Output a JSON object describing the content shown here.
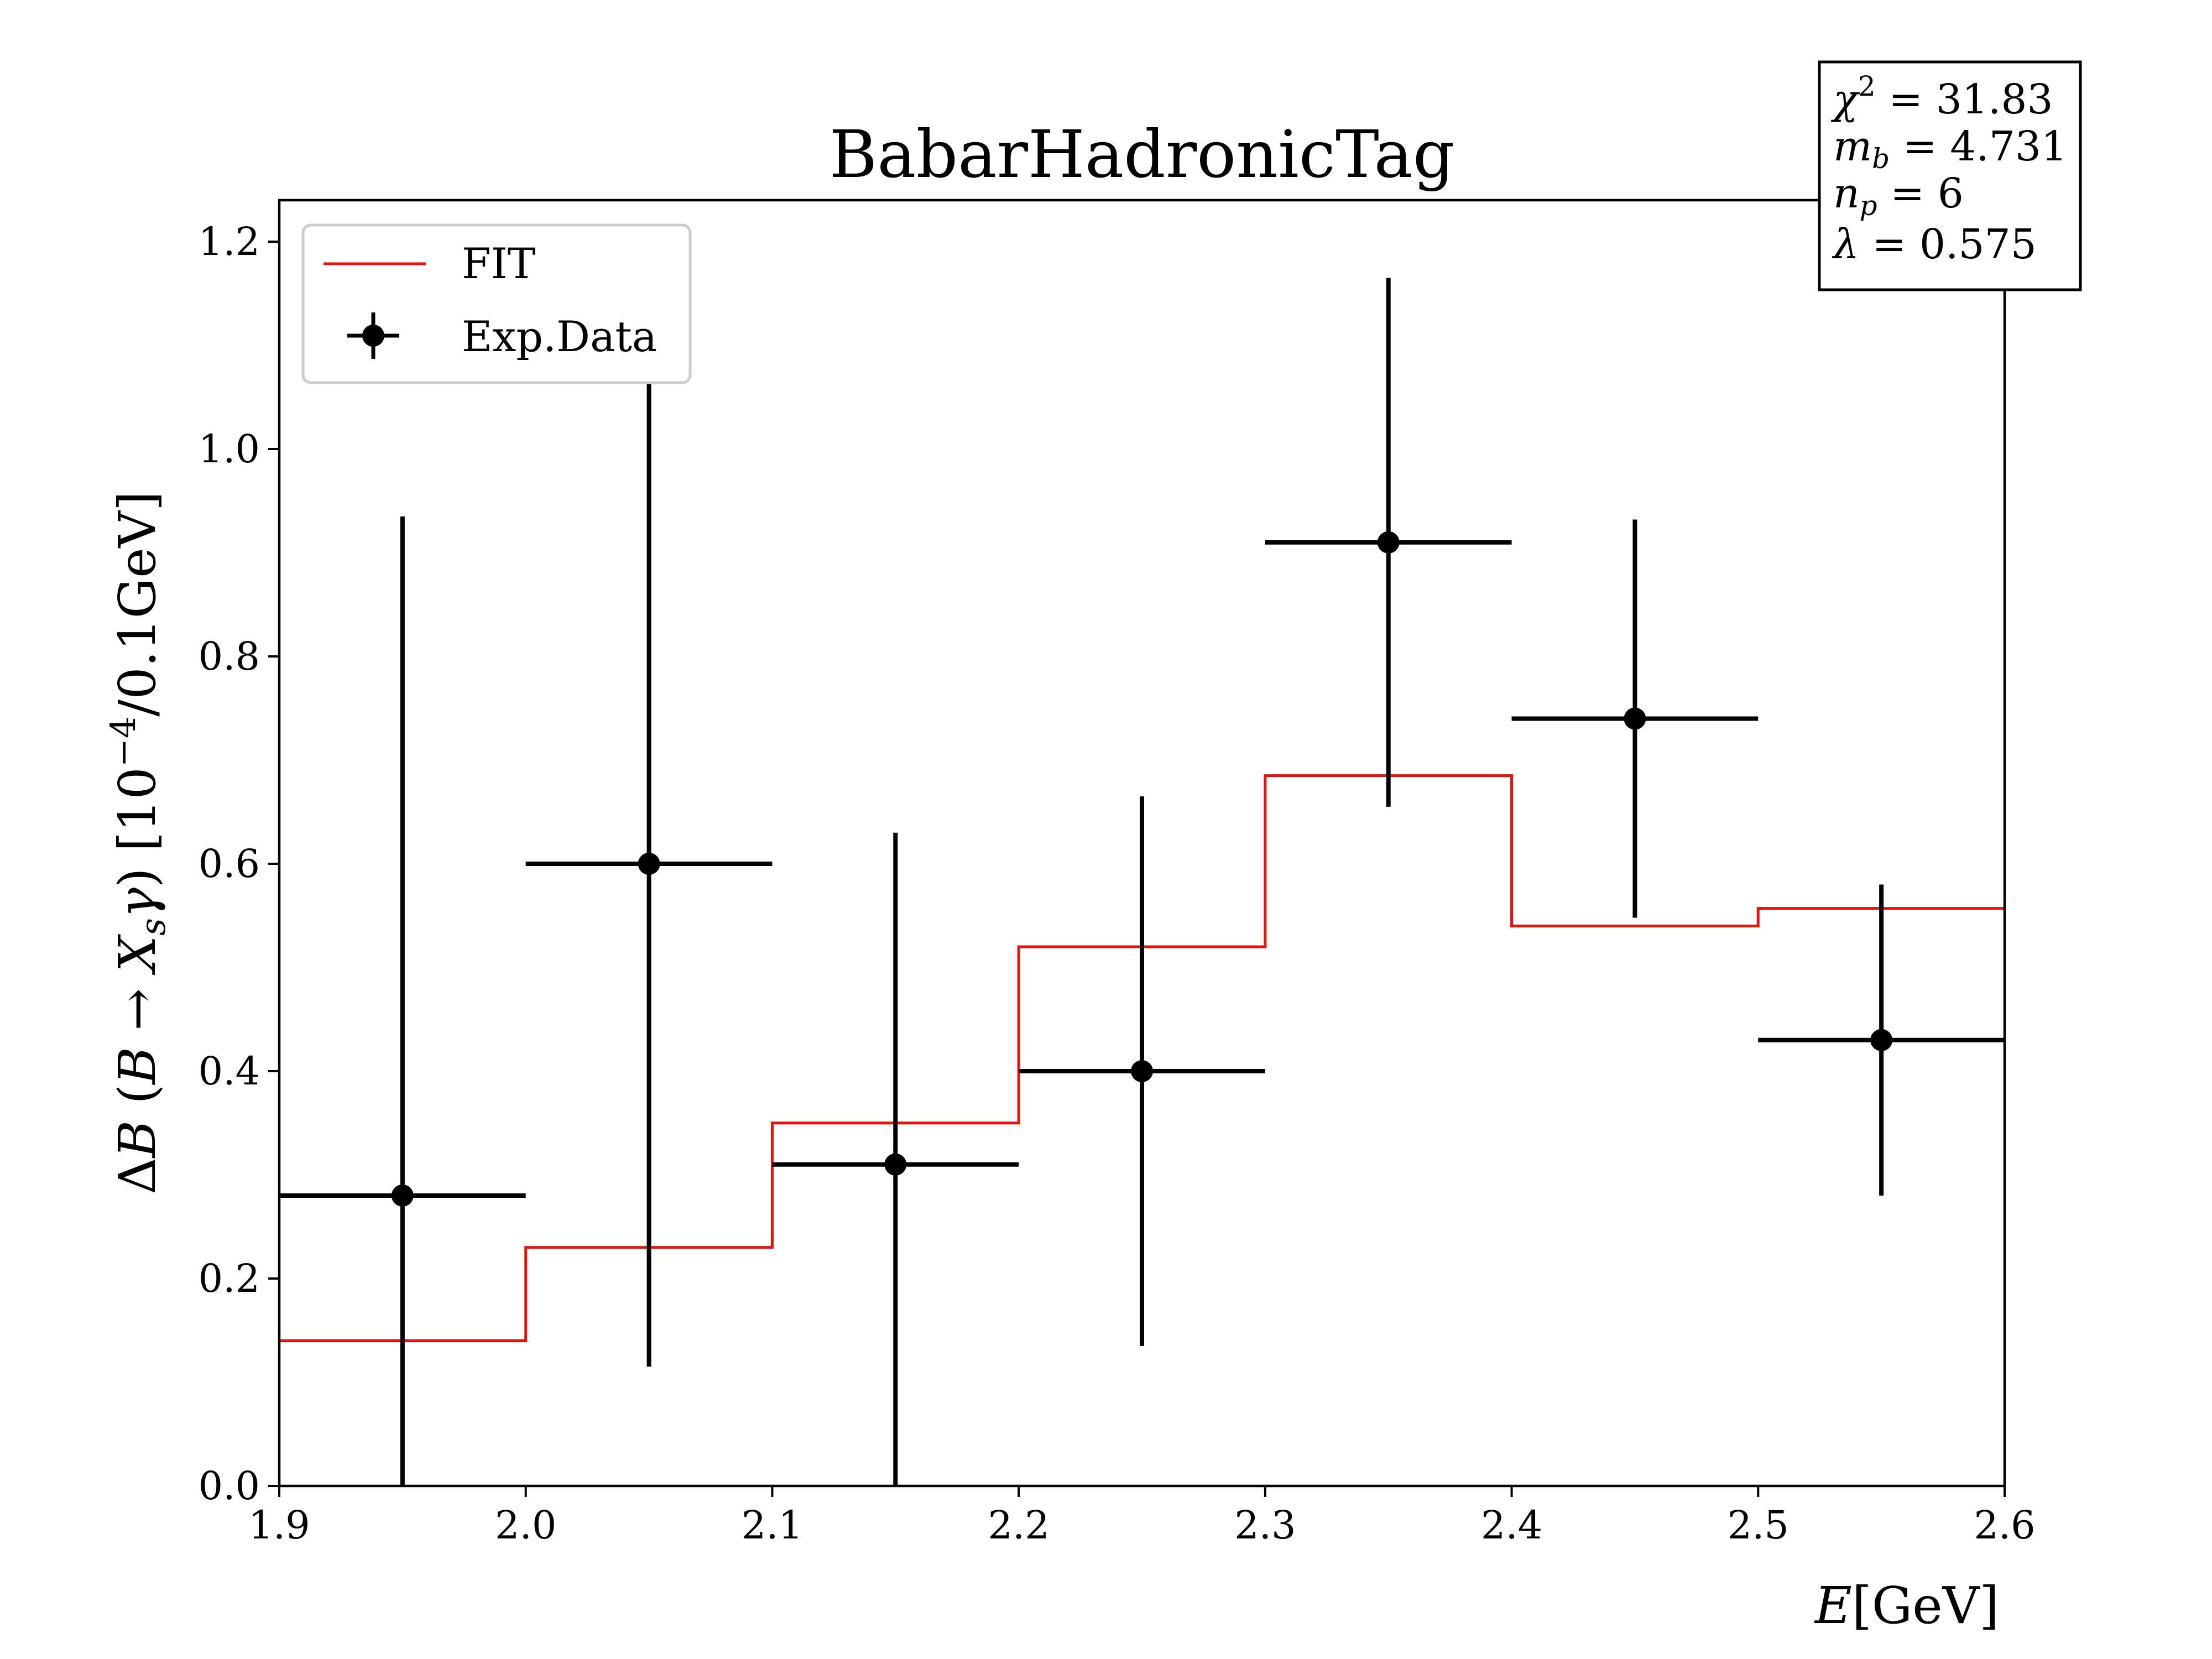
{
  "chart_data": {
    "type": "line",
    "title": "BabarHadronicTag",
    "xlabel": "E[GeV]",
    "ylabel": "ΔB (B → X_sγ) [10⁻⁴/0.1GeV]",
    "xlim": [
      1.9,
      2.6
    ],
    "ylim": [
      0.0,
      1.24
    ],
    "x_ticks": [
      "1.9",
      "2.0",
      "2.1",
      "2.2",
      "2.3",
      "2.4",
      "2.5",
      "2.6"
    ],
    "y_ticks": [
      "0.0",
      "0.2",
      "0.4",
      "0.6",
      "0.8",
      "1.0",
      "1.2"
    ],
    "grid": false,
    "legend_position": "top-left",
    "series": [
      {
        "name": "FIT",
        "style": "step",
        "color": "#e8120c",
        "bin_edges": [
          1.9,
          2.0,
          2.1,
          2.2,
          2.3,
          2.4,
          2.5,
          2.6
        ],
        "values": [
          0.14,
          0.23,
          0.35,
          0.52,
          0.685,
          0.54,
          0.557
        ]
      },
      {
        "name": "Exp.Data",
        "style": "errorbar",
        "color": "#000000",
        "x": [
          1.95,
          2.05,
          2.15,
          2.25,
          2.35,
          2.45,
          2.55
        ],
        "xerr": [
          0.05,
          0.05,
          0.05,
          0.05,
          0.05,
          0.05,
          0.05
        ],
        "y": [
          0.28,
          0.6,
          0.31,
          0.4,
          0.91,
          0.74,
          0.43
        ],
        "yerr": [
          0.655,
          0.485,
          0.32,
          0.265,
          0.255,
          0.192,
          0.15
        ]
      }
    ],
    "stats_box": {
      "position": "top-right",
      "lines": [
        "χ² = 31.83",
        "m_b = 4.731",
        "n_p = 6",
        "λ = 0.575"
      ]
    }
  }
}
